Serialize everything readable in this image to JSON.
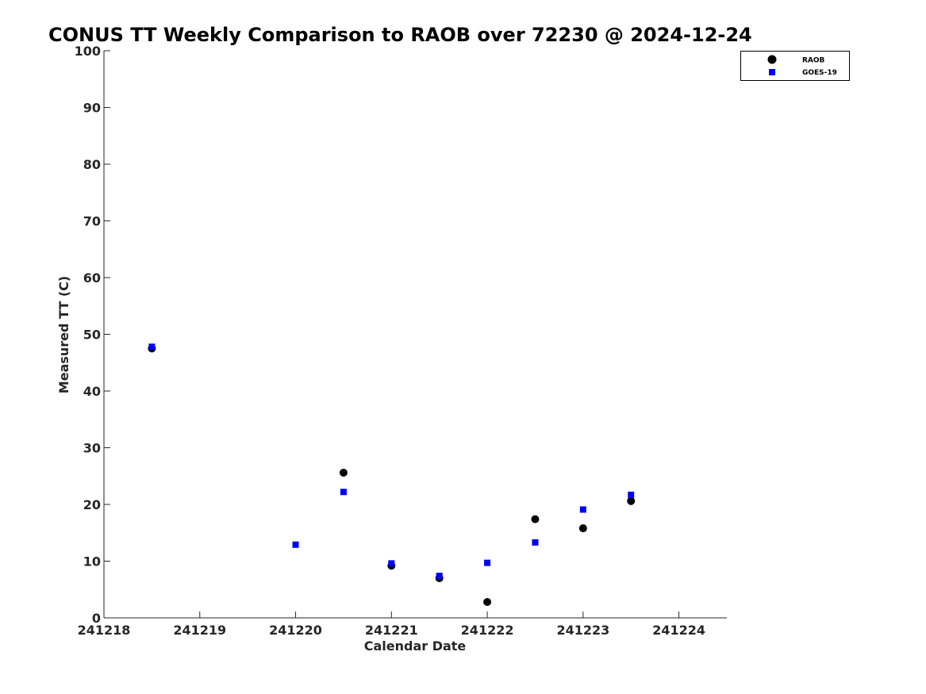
{
  "chart_data": {
    "type": "scatter",
    "title": "CONUS TT Weekly Comparison to RAOB over 72230 @ 2024-12-24",
    "xlabel": "Calendar Date",
    "ylabel": "Measured TT (C)",
    "x_ticks": [
      "241218",
      "241219",
      "241220",
      "241221",
      "241222",
      "241223",
      "241224"
    ],
    "xlim": [
      241218,
      241224.5
    ],
    "ylim": [
      0,
      100
    ],
    "y_ticks": [
      0,
      10,
      20,
      30,
      40,
      50,
      60,
      70,
      80,
      90,
      100
    ],
    "grid": false,
    "legend_position": "top-right",
    "series": [
      {
        "name": "RAOB",
        "marker": "circle",
        "color": "#000000",
        "x": [
          241218.5,
          241220.5,
          241221,
          241221.5,
          241222,
          241222.5,
          241223,
          241223.5
        ],
        "y": [
          47.5,
          25.6,
          9.2,
          7.0,
          2.8,
          17.4,
          15.8,
          20.6
        ]
      },
      {
        "name": "GOES-19",
        "marker": "square",
        "color": "#0000ff",
        "x": [
          241218.5,
          241220,
          241220.5,
          241221,
          241221.5,
          241222,
          241222.5,
          241223,
          241223.5
        ],
        "y": [
          47.8,
          12.9,
          22.2,
          9.6,
          7.4,
          9.7,
          13.3,
          19.1,
          21.7
        ]
      }
    ]
  }
}
